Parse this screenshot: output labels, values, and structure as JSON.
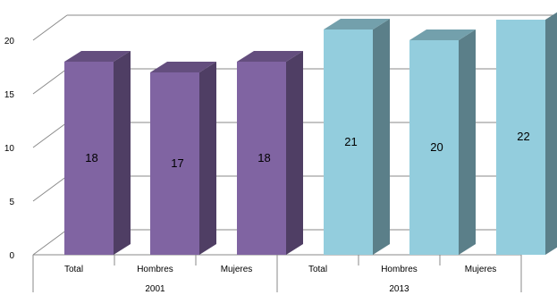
{
  "chart_data": {
    "type": "bar",
    "style": "3d-column",
    "groups": [
      {
        "label": "2001",
        "categories": [
          "Total",
          "Hombres",
          "Mujeres"
        ],
        "values": [
          18,
          17,
          18
        ],
        "color": "#8064a2"
      },
      {
        "label": "2013",
        "categories": [
          "Total",
          "Hombres",
          "Mujeres"
        ],
        "values": [
          21,
          20,
          22
        ],
        "color": "#93cddd"
      }
    ],
    "yticks": [
      "0",
      "5",
      "10",
      "15",
      "20"
    ],
    "ylim": [
      0,
      20
    ],
    "grid": true,
    "data_labels": true
  }
}
